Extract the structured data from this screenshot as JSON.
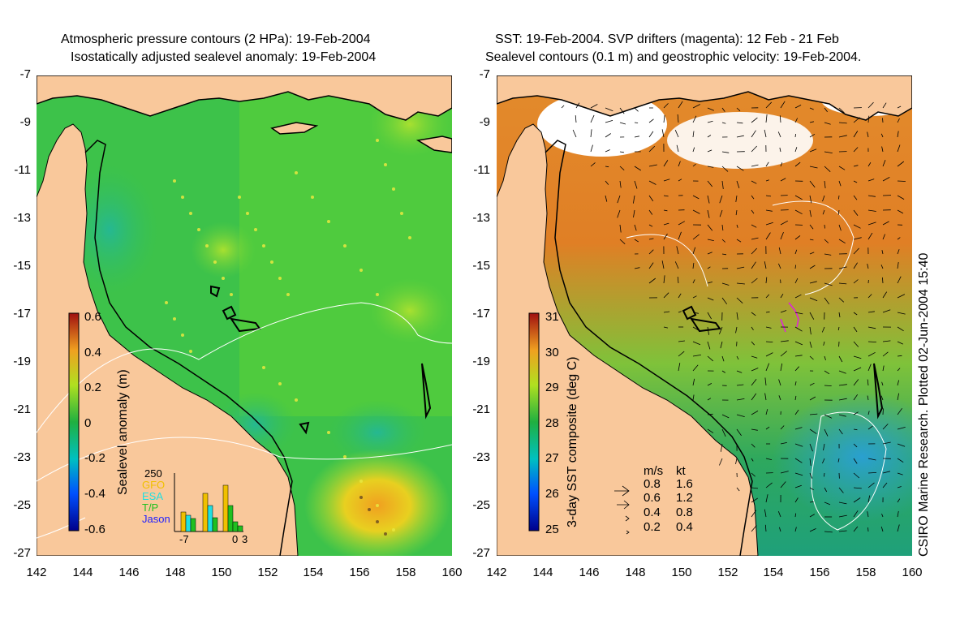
{
  "left_panel": {
    "title_line1": "Atmospheric pressure contours (2 HPa): 19-Feb-2004",
    "title_line2": "Isostatically adjusted sealevel anomaly: 19-Feb-2004",
    "colorbar": {
      "label": "Sealevel anomaly (m)",
      "ticks": [
        "0.6",
        "0.4",
        "0.2",
        "0",
        "-0.2",
        "-0.4",
        "-0.6"
      ]
    },
    "inset": {
      "ymax_label": "250",
      "series": [
        "GFO",
        "ESA",
        "T/P",
        "Jason"
      ],
      "series_colors": [
        "#f0c000",
        "#20e0e0",
        "#20c020",
        "#2020ff"
      ],
      "x_labels": [
        "-7",
        "0",
        "3"
      ]
    }
  },
  "right_panel": {
    "title_line1": "SST: 19-Feb-2004. SVP drifters (magenta): 12 Feb - 21 Feb",
    "title_line2": "Sealevel contours (0.1 m) and geostrophic velocity: 19-Feb-2004.",
    "colorbar": {
      "label": "3-day SST composite (deg C)",
      "ticks": [
        "31",
        "30",
        "29",
        "28",
        "27",
        "26",
        "25"
      ]
    },
    "velocity_legend": {
      "header_ms": "m/s",
      "header_kt": "kt",
      "rows": [
        {
          "ms": "0.8",
          "kt": "1.6"
        },
        {
          "ms": "0.6",
          "kt": "1.2"
        },
        {
          "ms": "0.4",
          "kt": "0.8"
        },
        {
          "ms": "0.2",
          "kt": "0.4"
        }
      ]
    },
    "credit": "CSIRO Marine Research. Plotted 02-Jun-2004 15:40"
  },
  "axes": {
    "y_ticks": [
      "-7",
      "-9",
      "-11",
      "-13",
      "-15",
      "-17",
      "-19",
      "-21",
      "-23",
      "-25",
      "-27"
    ],
    "x_ticks": [
      "142",
      "144",
      "146",
      "148",
      "150",
      "152",
      "154",
      "156",
      "158",
      "160"
    ]
  },
  "colors": {
    "land": "#f9c89b",
    "sla_sea": "#3dc24a",
    "sst_sea": "#e08a2c"
  }
}
